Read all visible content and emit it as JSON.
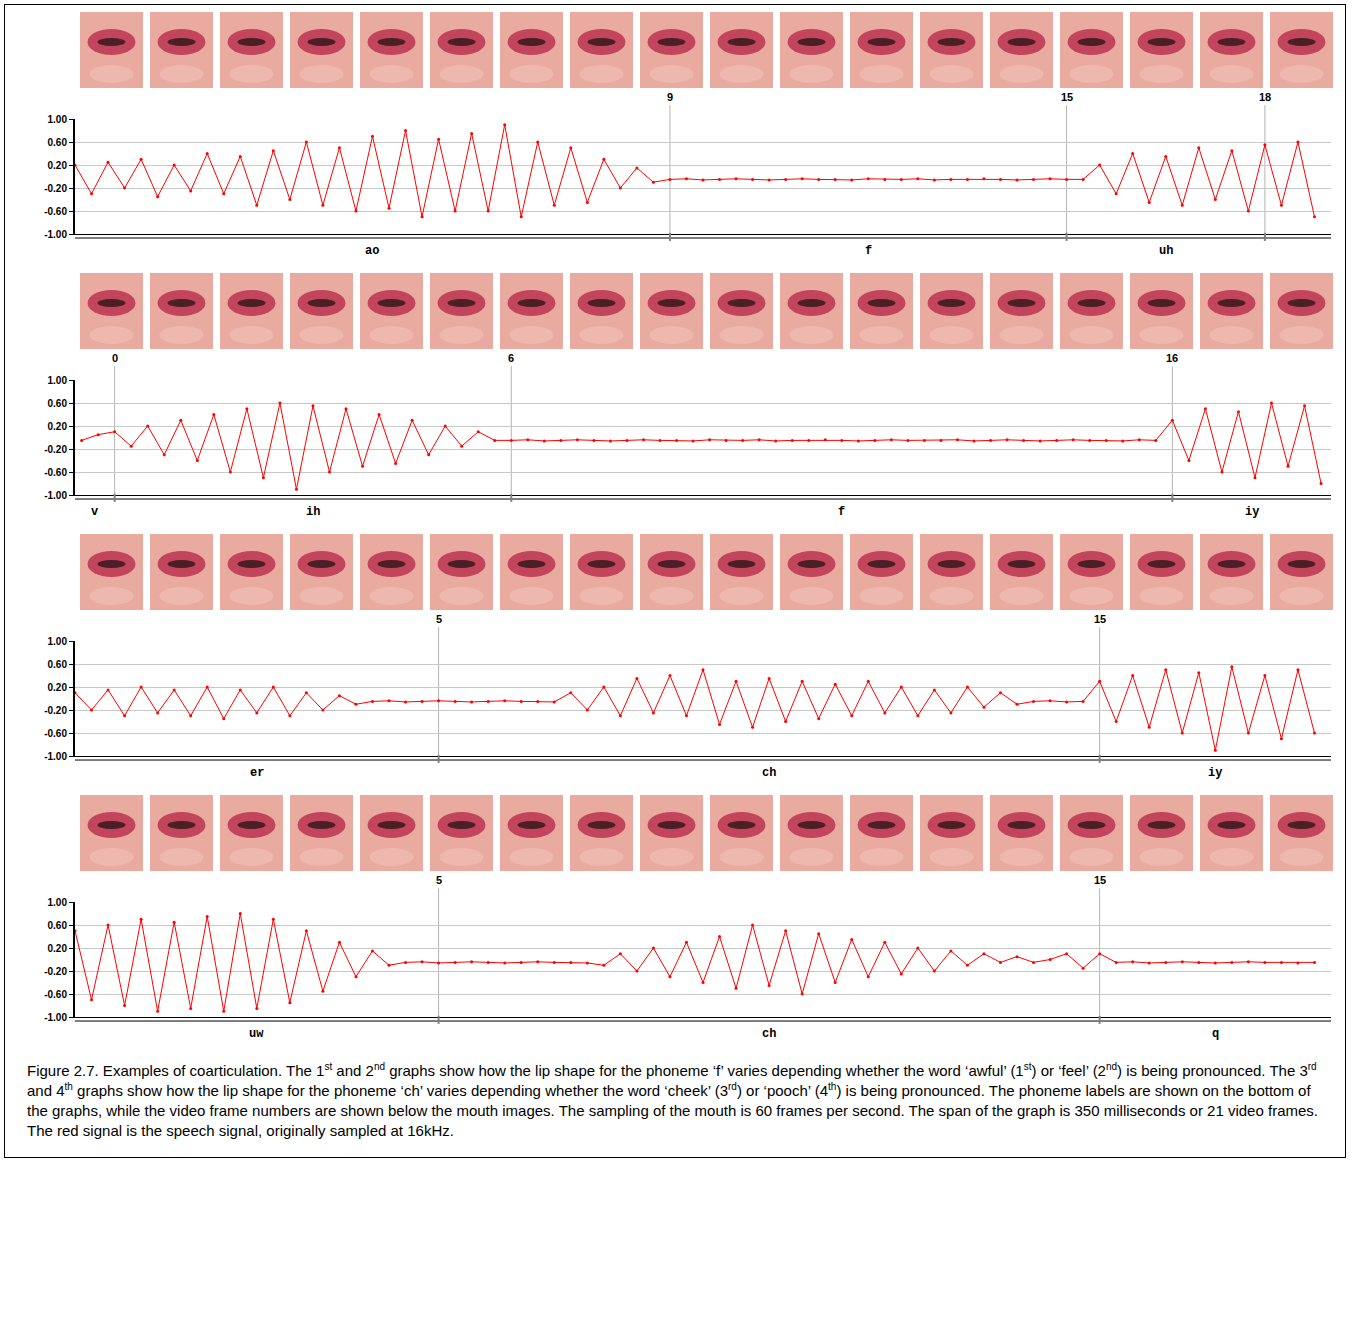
{
  "chart_data": [
    {
      "type": "line",
      "xlim": [
        0,
        19
      ],
      "ylim": [
        -1,
        1
      ],
      "yticks": [
        {
          "value": 1,
          "label": "1.00"
        },
        {
          "value": 0.6,
          "label": "0.60"
        },
        {
          "value": 0.2,
          "label": "0.20"
        },
        {
          "value": -0.2,
          "label": "-0.20"
        },
        {
          "value": -0.6,
          "label": "-0.60"
        },
        {
          "value": -1,
          "label": "-1.00"
        }
      ],
      "grid": true,
      "tick_labels": "y",
      "frame_markers": [
        9,
        15,
        18
      ],
      "phonemes": [
        {
          "label": "ao",
          "end": 9
        },
        {
          "label": "f",
          "start": 9,
          "end": 15
        },
        {
          "label": "uh",
          "start": 15,
          "end": 18
        }
      ],
      "series": [
        {
          "color": "#ff0000",
          "marker": "circle",
          "x": [
            0,
            0.25,
            0.5,
            0.75,
            1,
            1.25,
            1.5,
            1.75,
            2,
            2.25,
            2.5,
            2.75,
            3,
            3.25,
            3.5,
            3.75,
            4,
            4.25,
            4.5,
            4.75,
            5,
            5.25,
            5.5,
            5.75,
            6,
            6.25,
            6.5,
            6.75,
            7,
            7.25,
            7.5,
            7.75,
            8,
            8.25,
            8.5,
            8.75,
            9,
            9.25,
            9.5,
            9.75,
            10,
            10.25,
            10.5,
            10.75,
            11,
            11.25,
            11.5,
            11.75,
            12,
            12.25,
            12.5,
            12.75,
            13,
            13.25,
            13.5,
            13.75,
            14,
            14.25,
            14.5,
            14.75,
            15,
            15.25,
            15.5,
            15.75,
            16,
            16.25,
            16.5,
            16.75,
            17,
            17.25,
            17.5,
            17.75,
            18,
            18.25,
            18.5,
            18.75
          ],
          "values": [
            0.2,
            -0.3,
            0.25,
            -0.2,
            0.3,
            -0.35,
            0.2,
            -0.25,
            0.4,
            -0.3,
            0.35,
            -0.5,
            0.45,
            -0.4,
            0.6,
            -0.5,
            0.5,
            -0.6,
            0.7,
            -0.55,
            0.8,
            -0.7,
            0.65,
            -0.6,
            0.75,
            -0.6,
            0.9,
            -0.7,
            0.6,
            -0.5,
            0.5,
            -0.45,
            0.3,
            -0.2,
            0.15,
            -0.1,
            -0.05,
            -0.04,
            -0.06,
            -0.05,
            -0.04,
            -0.05,
            -0.06,
            -0.05,
            -0.04,
            -0.05,
            -0.05,
            -0.06,
            -0.04,
            -0.05,
            -0.05,
            -0.04,
            -0.06,
            -0.05,
            -0.05,
            -0.04,
            -0.05,
            -0.06,
            -0.05,
            -0.04,
            -0.05,
            -0.05,
            0.2,
            -0.3,
            0.4,
            -0.45,
            0.35,
            -0.5,
            0.5,
            -0.4,
            0.45,
            -0.6,
            0.55,
            -0.5,
            0.6,
            -0.7
          ]
        }
      ]
    },
    {
      "type": "line",
      "xlim": [
        -0.6,
        18.4
      ],
      "ylim": [
        -1,
        1
      ],
      "yticks": [
        {
          "value": 1,
          "label": "1.00"
        },
        {
          "value": 0.6,
          "label": "0.60"
        },
        {
          "value": 0.2,
          "label": "0.20"
        },
        {
          "value": -0.2,
          "label": "-0.20"
        },
        {
          "value": -0.6,
          "label": "-0.60"
        },
        {
          "value": -1,
          "label": "-1.00"
        }
      ],
      "grid": true,
      "tick_labels": "y",
      "frame_markers": [
        0,
        6,
        16
      ],
      "phonemes": [
        {
          "label": "v",
          "end": 0
        },
        {
          "label": "ih",
          "start": 0,
          "end": 6
        },
        {
          "label": "f",
          "start": 6,
          "end": 16
        },
        {
          "label": "iy",
          "start": 16
        }
      ],
      "series": [
        {
          "color": "#ff0000",
          "marker": "circle",
          "x": [
            -0.5,
            -0.25,
            0,
            0.25,
            0.5,
            0.75,
            1,
            1.25,
            1.5,
            1.75,
            2,
            2.25,
            2.5,
            2.75,
            3,
            3.25,
            3.5,
            3.75,
            4,
            4.25,
            4.5,
            4.75,
            5,
            5.25,
            5.5,
            5.75,
            6,
            6.25,
            6.5,
            6.75,
            7,
            7.25,
            7.5,
            7.75,
            8,
            8.25,
            8.5,
            8.75,
            9,
            9.25,
            9.5,
            9.75,
            10,
            10.25,
            10.5,
            10.75,
            11,
            11.25,
            11.5,
            11.75,
            12,
            12.25,
            12.5,
            12.75,
            13,
            13.25,
            13.5,
            13.75,
            14,
            14.25,
            14.5,
            14.75,
            15,
            15.25,
            15.5,
            15.75,
            16,
            16.25,
            16.5,
            16.75,
            17,
            17.25,
            17.5,
            17.75,
            18,
            18.25
          ],
          "values": [
            -0.05,
            0.05,
            0.1,
            -0.15,
            0.2,
            -0.3,
            0.3,
            -0.4,
            0.4,
            -0.6,
            0.5,
            -0.7,
            0.6,
            -0.9,
            0.55,
            -0.6,
            0.5,
            -0.5,
            0.4,
            -0.45,
            0.3,
            -0.3,
            0.2,
            -0.15,
            0.1,
            -0.05,
            -0.05,
            -0.04,
            -0.06,
            -0.05,
            -0.04,
            -0.05,
            -0.06,
            -0.05,
            -0.04,
            -0.05,
            -0.05,
            -0.06,
            -0.04,
            -0.05,
            -0.05,
            -0.04,
            -0.06,
            -0.05,
            -0.05,
            -0.04,
            -0.05,
            -0.06,
            -0.05,
            -0.04,
            -0.05,
            -0.05,
            -0.05,
            -0.04,
            -0.06,
            -0.05,
            -0.04,
            -0.05,
            -0.06,
            -0.05,
            -0.04,
            -0.05,
            -0.05,
            -0.06,
            -0.04,
            -0.05,
            0.3,
            -0.4,
            0.5,
            -0.6,
            0.45,
            -0.7,
            0.6,
            -0.5,
            0.55,
            -0.8
          ]
        }
      ]
    },
    {
      "type": "line",
      "xlim": [
        -0.5,
        18.5
      ],
      "ylim": [
        -1,
        1
      ],
      "yticks": [
        {
          "value": 1,
          "label": "1.00"
        },
        {
          "value": 0.6,
          "label": "0.60"
        },
        {
          "value": 0.2,
          "label": "0.20"
        },
        {
          "value": -0.2,
          "label": "-0.20"
        },
        {
          "value": -0.6,
          "label": "-0.60"
        },
        {
          "value": -1,
          "label": "-1.00"
        }
      ],
      "grid": true,
      "tick_labels": "y",
      "frame_markers": [
        5,
        15
      ],
      "phonemes": [
        {
          "label": "er",
          "end": 5
        },
        {
          "label": "ch",
          "start": 5,
          "end": 15
        },
        {
          "label": "iy",
          "start": 15
        }
      ],
      "series": [
        {
          "color": "#ff0000",
          "marker": "circle",
          "x": [
            -0.5,
            -0.25,
            0,
            0.25,
            0.5,
            0.75,
            1,
            1.25,
            1.5,
            1.75,
            2,
            2.25,
            2.5,
            2.75,
            3,
            3.25,
            3.5,
            3.75,
            4,
            4.25,
            4.5,
            4.75,
            5,
            5.25,
            5.5,
            5.75,
            6,
            6.25,
            6.5,
            6.75,
            7,
            7.25,
            7.5,
            7.75,
            8,
            8.25,
            8.5,
            8.75,
            9,
            9.25,
            9.5,
            9.75,
            10,
            10.25,
            10.5,
            10.75,
            11,
            11.25,
            11.5,
            11.75,
            12,
            12.25,
            12.5,
            12.75,
            13,
            13.25,
            13.5,
            13.75,
            14,
            14.25,
            14.5,
            14.75,
            15,
            15.25,
            15.5,
            15.75,
            16,
            16.25,
            16.5,
            16.75,
            17,
            17.25,
            17.5,
            17.75,
            18,
            18.25
          ],
          "values": [
            0.1,
            -0.2,
            0.15,
            -0.3,
            0.2,
            -0.25,
            0.15,
            -0.3,
            0.2,
            -0.35,
            0.15,
            -0.25,
            0.2,
            -0.3,
            0.1,
            -0.2,
            0.05,
            -0.1,
            -0.05,
            -0.04,
            -0.06,
            -0.05,
            -0.04,
            -0.05,
            -0.06,
            -0.05,
            -0.04,
            -0.05,
            -0.05,
            -0.06,
            0.1,
            -0.2,
            0.2,
            -0.3,
            0.35,
            -0.25,
            0.4,
            -0.3,
            0.5,
            -0.45,
            0.3,
            -0.5,
            0.35,
            -0.4,
            0.3,
            -0.35,
            0.25,
            -0.3,
            0.3,
            -0.25,
            0.2,
            -0.3,
            0.15,
            -0.25,
            0.2,
            -0.15,
            0.1,
            -0.1,
            -0.05,
            -0.04,
            -0.06,
            -0.05,
            0.3,
            -0.4,
            0.4,
            -0.5,
            0.5,
            -0.6,
            0.45,
            -0.9,
            0.55,
            -0.6,
            0.4,
            -0.7,
            0.5,
            -0.6
          ]
        }
      ]
    },
    {
      "type": "line",
      "xlim": [
        -0.5,
        18.5
      ],
      "ylim": [
        -1,
        1
      ],
      "yticks": [
        {
          "value": 1,
          "label": "1.00"
        },
        {
          "value": 0.6,
          "label": "0.60"
        },
        {
          "value": 0.2,
          "label": "0.20"
        },
        {
          "value": -0.2,
          "label": "-0.20"
        },
        {
          "value": -0.6,
          "label": "-0.60"
        },
        {
          "value": -1,
          "label": "-1.00"
        }
      ],
      "grid": true,
      "tick_labels": "y",
      "frame_markers": [
        5,
        15
      ],
      "phonemes": [
        {
          "label": "uw",
          "end": 5
        },
        {
          "label": "ch",
          "start": 5,
          "end": 15
        },
        {
          "label": "q",
          "start": 15
        }
      ],
      "series": [
        {
          "color": "#ff0000",
          "marker": "circle",
          "x": [
            -0.5,
            -0.25,
            0,
            0.25,
            0.5,
            0.75,
            1,
            1.25,
            1.5,
            1.75,
            2,
            2.25,
            2.5,
            2.75,
            3,
            3.25,
            3.5,
            3.75,
            4,
            4.25,
            4.5,
            4.75,
            5,
            5.25,
            5.5,
            5.75,
            6,
            6.25,
            6.5,
            6.75,
            7,
            7.25,
            7.5,
            7.75,
            8,
            8.25,
            8.5,
            8.75,
            9,
            9.25,
            9.5,
            9.75,
            10,
            10.25,
            10.5,
            10.75,
            11,
            11.25,
            11.5,
            11.75,
            12,
            12.25,
            12.5,
            12.75,
            13,
            13.25,
            13.5,
            13.75,
            14,
            14.25,
            14.5,
            14.75,
            15,
            15.25,
            15.5,
            15.75,
            16,
            16.25,
            16.5,
            16.75,
            17,
            17.25,
            17.5,
            17.75,
            18,
            18.25
          ],
          "values": [
            0.5,
            -0.7,
            0.6,
            -0.8,
            0.7,
            -0.9,
            0.65,
            -0.85,
            0.75,
            -0.9,
            0.8,
            -0.85,
            0.7,
            -0.75,
            0.5,
            -0.55,
            0.3,
            -0.3,
            0.15,
            -0.1,
            -0.05,
            -0.04,
            -0.06,
            -0.05,
            -0.04,
            -0.05,
            -0.06,
            -0.05,
            -0.04,
            -0.05,
            -0.05,
            -0.06,
            -0.1,
            0.1,
            -0.2,
            0.2,
            -0.3,
            0.3,
            -0.4,
            0.4,
            -0.5,
            0.6,
            -0.45,
            0.5,
            -0.6,
            0.45,
            -0.4,
            0.35,
            -0.3,
            0.3,
            -0.25,
            0.2,
            -0.2,
            0.15,
            -0.1,
            0.1,
            -0.05,
            0.05,
            -0.05,
            0.0,
            0.1,
            -0.15,
            0.1,
            -0.05,
            -0.04,
            -0.06,
            -0.05,
            -0.04,
            -0.05,
            -0.06,
            -0.05,
            -0.04,
            -0.05,
            -0.05,
            -0.06,
            -0.05
          ]
        }
      ]
    }
  ],
  "caption": "Figure 2.7. Examples of coarticulation. The 1st and 2nd graphs show how the lip shape for the phoneme ‘f’ varies depending whether the word ‘awful’ (1st) or ‘feel’ (2nd) is being pronounced. The 3rd and 4th graphs show how the lip shape for the phoneme ‘ch’ varies depending whether the word ‘cheek’ (3rd) or ‘pooch’ (4th) is being pronounced. The phoneme labels are shown on the bottom of the graphs, while the video frame numbers are shown below the mouth images. The sampling of the mouth is 60 frames per second. The span of the graph is 350 milliseconds or 21 video frames. The red signal is the speech signal, originally sampled at 16kHz."
}
